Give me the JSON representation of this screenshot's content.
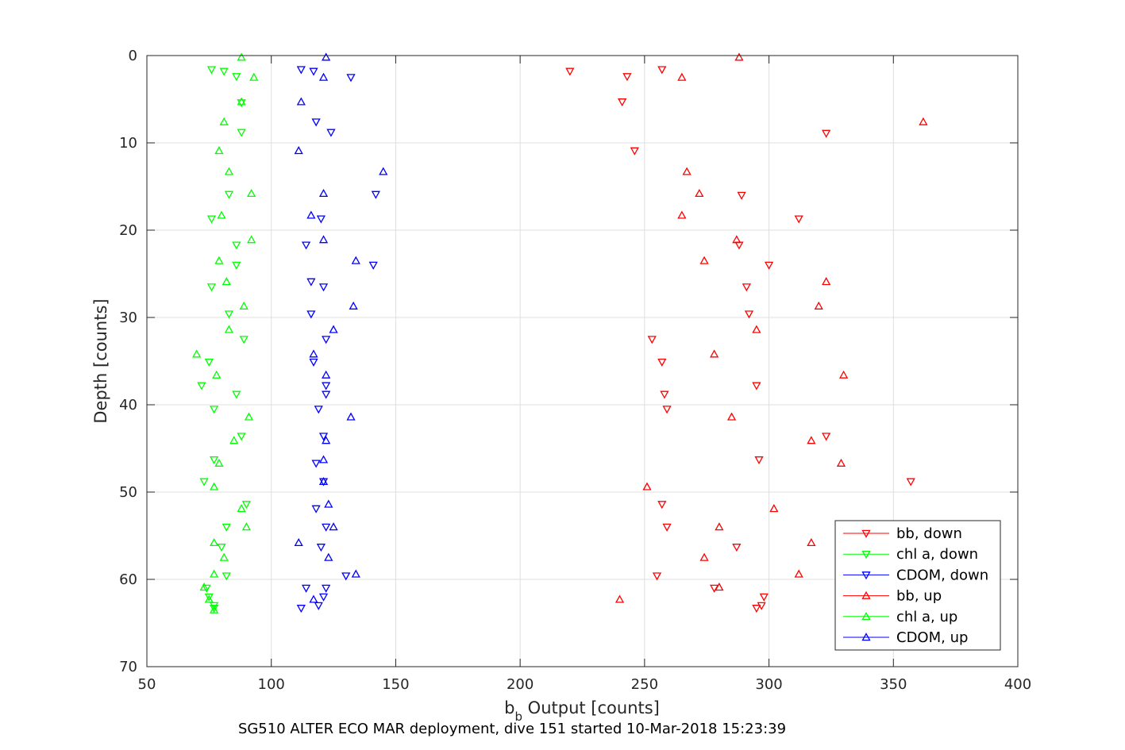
{
  "chart_data": {
    "type": "scatter",
    "caption": "SG510 ALTER ECO MAR deployment, dive 151 started 10-Mar-2018 15:23:39",
    "xlabel_main": "b",
    "xlabel_sub": "b",
    "xlabel_rest": " Output [counts]",
    "ylabel": "Depth [counts]",
    "xlim": [
      50,
      400
    ],
    "ylim": [
      0,
      70
    ],
    "y_reversed": true,
    "xticks": [
      50,
      100,
      150,
      200,
      250,
      300,
      350,
      400
    ],
    "yticks": [
      0,
      10,
      20,
      30,
      40,
      50,
      60,
      70
    ],
    "grid": true,
    "legend_position": "bottom-right",
    "series": [
      {
        "name": "bb, down",
        "color": "#ff0000",
        "marker": "triangle-down",
        "points": [
          [
            220,
            1.8
          ],
          [
            243,
            2.4
          ],
          [
            257,
            1.6
          ],
          [
            241,
            5.3
          ],
          [
            323,
            8.9
          ],
          [
            246,
            10.9
          ],
          [
            289,
            16
          ],
          [
            312,
            18.7
          ],
          [
            288,
            21.7
          ],
          [
            300,
            24
          ],
          [
            291,
            26.5
          ],
          [
            292,
            29.6
          ],
          [
            253,
            32.5
          ],
          [
            257,
            35.1
          ],
          [
            295,
            37.8
          ],
          [
            258,
            38.8
          ],
          [
            259,
            40.5
          ],
          [
            323,
            43.6
          ],
          [
            296,
            46.3
          ],
          [
            357,
            48.8
          ],
          [
            257,
            51.4
          ],
          [
            259,
            54
          ],
          [
            287,
            56.3
          ],
          [
            255,
            59.6
          ],
          [
            278,
            61
          ],
          [
            298,
            62
          ],
          [
            297,
            63
          ],
          [
            295,
            63.3
          ]
        ]
      },
      {
        "name": "chl a, down",
        "color": "#00ff00",
        "marker": "triangle-down",
        "points": [
          [
            76,
            1.6
          ],
          [
            81,
            1.8
          ],
          [
            86,
            2.4
          ],
          [
            88,
            5.4
          ],
          [
            88,
            8.8
          ],
          [
            83,
            15.9
          ],
          [
            76,
            18.7
          ],
          [
            86,
            21.7
          ],
          [
            86,
            24
          ],
          [
            76,
            26.5
          ],
          [
            83,
            29.6
          ],
          [
            89,
            32.5
          ],
          [
            75,
            35.1
          ],
          [
            72,
            37.8
          ],
          [
            86,
            38.8
          ],
          [
            77,
            40.5
          ],
          [
            88,
            43.6
          ],
          [
            77,
            46.3
          ],
          [
            73,
            48.8
          ],
          [
            90,
            51.4
          ],
          [
            82,
            54
          ],
          [
            80,
            56.3
          ],
          [
            82,
            59.6
          ],
          [
            74,
            61
          ],
          [
            75,
            62
          ],
          [
            77,
            63
          ],
          [
            77,
            63.3
          ]
        ]
      },
      {
        "name": "CDOM, down",
        "color": "#0000ff",
        "marker": "triangle-down",
        "points": [
          [
            112,
            1.6
          ],
          [
            117,
            1.8
          ],
          [
            132,
            2.5
          ],
          [
            118,
            7.6
          ],
          [
            124,
            8.8
          ],
          [
            142,
            15.9
          ],
          [
            120,
            18.7
          ],
          [
            114,
            21.7
          ],
          [
            141,
            24
          ],
          [
            116,
            25.9
          ],
          [
            121,
            26.5
          ],
          [
            116,
            29.6
          ],
          [
            122,
            32.5
          ],
          [
            117,
            35.1
          ],
          [
            122,
            37.8
          ],
          [
            122,
            38.8
          ],
          [
            119,
            40.5
          ],
          [
            121,
            43.6
          ],
          [
            118,
            46.7
          ],
          [
            121,
            48.8
          ],
          [
            118,
            51.9
          ],
          [
            122,
            54
          ],
          [
            120,
            56.3
          ],
          [
            130,
            59.6
          ],
          [
            114,
            61
          ],
          [
            122,
            61
          ],
          [
            121,
            62
          ],
          [
            119,
            63
          ],
          [
            112,
            63.3
          ]
        ]
      },
      {
        "name": "bb, up",
        "color": "#ff0000",
        "marker": "triangle-up",
        "points": [
          [
            288,
            0.2
          ],
          [
            265,
            2.5
          ],
          [
            362,
            7.6
          ],
          [
            267,
            13.3
          ],
          [
            272,
            15.8
          ],
          [
            265,
            18.3
          ],
          [
            287,
            21.1
          ],
          [
            274,
            23.5
          ],
          [
            323,
            25.9
          ],
          [
            320,
            28.7
          ],
          [
            295,
            31.4
          ],
          [
            278,
            34.2
          ],
          [
            330,
            36.6
          ],
          [
            285,
            41.4
          ],
          [
            317,
            44.1
          ],
          [
            329,
            46.7
          ],
          [
            251,
            49.4
          ],
          [
            302,
            51.9
          ],
          [
            280,
            54
          ],
          [
            317,
            55.8
          ],
          [
            274,
            57.5
          ],
          [
            312,
            59.4
          ],
          [
            280,
            60.9
          ],
          [
            240,
            62.3
          ]
        ]
      },
      {
        "name": "chl a, up",
        "color": "#00ff00",
        "marker": "triangle-up",
        "points": [
          [
            88,
            0.2
          ],
          [
            93,
            2.5
          ],
          [
            88,
            5.3
          ],
          [
            81,
            7.6
          ],
          [
            79,
            10.9
          ],
          [
            83,
            13.3
          ],
          [
            92,
            15.8
          ],
          [
            80,
            18.3
          ],
          [
            92,
            21.1
          ],
          [
            79,
            23.5
          ],
          [
            82,
            25.9
          ],
          [
            89,
            28.7
          ],
          [
            83,
            31.4
          ],
          [
            70,
            34.2
          ],
          [
            78,
            36.6
          ],
          [
            91,
            41.4
          ],
          [
            85,
            44.1
          ],
          [
            79,
            46.7
          ],
          [
            77,
            49.4
          ],
          [
            88,
            51.9
          ],
          [
            90,
            54
          ],
          [
            77,
            55.8
          ],
          [
            81,
            57.5
          ],
          [
            77,
            59.4
          ],
          [
            73,
            60.9
          ],
          [
            75,
            62.3
          ],
          [
            77,
            63.5
          ]
        ]
      },
      {
        "name": "CDOM, up",
        "color": "#0000ff",
        "marker": "triangle-up",
        "points": [
          [
            122,
            0.2
          ],
          [
            121,
            2.5
          ],
          [
            112,
            5.3
          ],
          [
            111,
            10.9
          ],
          [
            145,
            13.3
          ],
          [
            121,
            15.8
          ],
          [
            116,
            18.3
          ],
          [
            121,
            21.1
          ],
          [
            134,
            23.5
          ],
          [
            133,
            28.7
          ],
          [
            125,
            31.4
          ],
          [
            117,
            34.2
          ],
          [
            122,
            36.6
          ],
          [
            132,
            41.4
          ],
          [
            122,
            44.1
          ],
          [
            121,
            46.3
          ],
          [
            121,
            48.8
          ],
          [
            123,
            51.4
          ],
          [
            125,
            54
          ],
          [
            111,
            55.8
          ],
          [
            123,
            57.5
          ],
          [
            134,
            59.4
          ],
          [
            117,
            62.3
          ]
        ]
      }
    ]
  }
}
